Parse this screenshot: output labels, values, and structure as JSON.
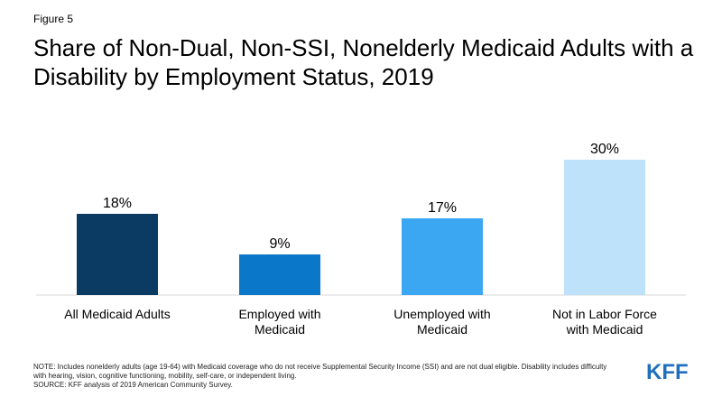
{
  "figure_label": "Figure 5",
  "footer": {
    "note": "NOTE: Includes nonelderly adults (age 19-64) with Medicaid coverage who do not receive Supplemental Security Income (SSI) and are not dual eligible. Disability includes difficulty with hearing, vision, cognitive functioning, mobility, self-care, or independent living.",
    "source": "SOURCE: KFF analysis of 2019 American Community Survey."
  },
  "logo": {
    "text": "KFF",
    "color": "#1f6fbf"
  },
  "chart_data": {
    "type": "bar",
    "title": "Share of Non-Dual, Non-SSI, Nonelderly Medicaid Adults with a Disability by Employment Status, 2019",
    "xlabel": "",
    "ylabel": "",
    "ylim": [
      0,
      35
    ],
    "grid": false,
    "categories": [
      [
        "All Medicaid Adults"
      ],
      [
        "Employed with",
        "Medicaid"
      ],
      [
        "Unemployed with",
        "Medicaid"
      ],
      [
        "Not in Labor Force",
        "with Medicaid"
      ]
    ],
    "values": [
      18,
      9,
      17,
      30
    ],
    "data_labels": [
      "18%",
      "9%",
      "17%",
      "30%"
    ],
    "colors": [
      "#0b3a63",
      "#0b77c8",
      "#3ba7f2",
      "#bfe2fb"
    ]
  }
}
